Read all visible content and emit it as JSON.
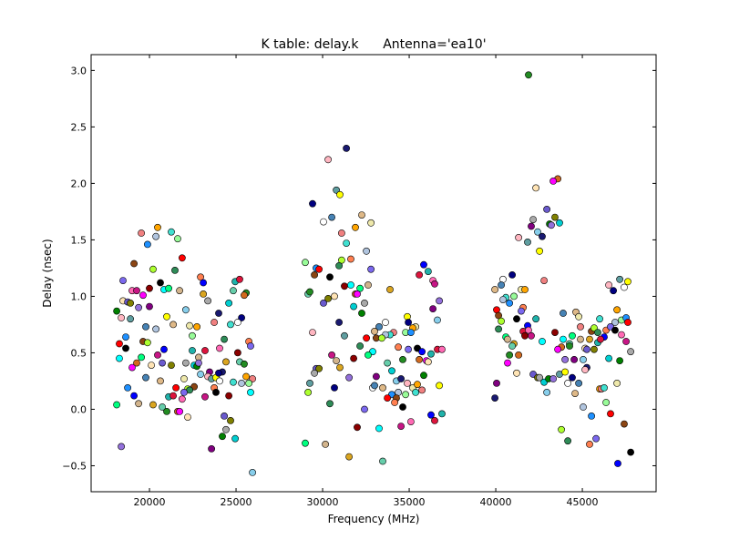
{
  "chart_data": {
    "type": "scatter",
    "title": "K table: delay.k      Antenna='ea10'",
    "xlabel": "Frequency (MHz)",
    "ylabel": "Delay (nsec)",
    "xlim": [
      16630,
      49260
    ],
    "ylim": [
      -0.73,
      3.14
    ],
    "xticks": [
      20000,
      25000,
      30000,
      35000,
      40000,
      45000
    ],
    "yticks": [
      -0.5,
      0.0,
      0.5,
      1.0,
      1.5,
      2.0,
      2.5,
      3.0
    ],
    "xtick_labels": [
      "20000",
      "25000",
      "30000",
      "35000",
      "40000",
      "45000"
    ],
    "ytick_labels": [
      "−0.5",
      "0.0",
      "0.5",
      "1.0",
      "1.5",
      "2.0",
      "2.5",
      "3.0"
    ],
    "grid": false,
    "marker": "circle",
    "colors": [
      "#ff0000",
      "#00ffff",
      "#008000",
      "#ffa500",
      "#0000ff",
      "#ff00ff",
      "#ffff00",
      "#8b4513",
      "#00ff7f",
      "#9370db",
      "#f08080",
      "#20b2aa",
      "#ffe4b5",
      "#000080",
      "#adff2f",
      "#d2b48c",
      "#800080",
      "#40e0d0",
      "#dc143c",
      "#6a5acd",
      "#ffffff",
      "#2e8b57",
      "#daa520",
      "#87ceeb",
      "#b0c4de",
      "#ff69b4",
      "#808000",
      "#4682b4",
      "#ff7f50",
      "#66cdaa",
      "#191970",
      "#98fb98",
      "#c71585",
      "#a9a9a9",
      "#deb887",
      "#7b68ee",
      "#228b22",
      "#ffb6c1",
      "#1e90ff",
      "#8b0000",
      "#00ced1",
      "#eee8aa",
      "#000000",
      "#d2691e",
      "#5f9ea0"
    ],
    "points": [
      [
        20470,
        1.61
      ],
      [
        19530,
        1.56
      ],
      [
        21260,
        1.57
      ],
      [
        20370,
        1.53
      ],
      [
        21630,
        1.51
      ],
      [
        19890,
        1.46
      ],
      [
        21890,
        1.34
      ],
      [
        19110,
        1.29
      ],
      [
        20210,
        1.24
      ],
      [
        21470,
        1.23
      ],
      [
        22950,
        1.17
      ],
      [
        18470,
        1.14
      ],
      [
        20630,
        1.12
      ],
      [
        23110,
        1.12
      ],
      [
        24950,
        1.13
      ],
      [
        25210,
        1.15
      ],
      [
        19000,
        1.05
      ],
      [
        19260,
        1.05
      ],
      [
        20000,
        1.07
      ],
      [
        20840,
        1.06
      ],
      [
        21110,
        1.07
      ],
      [
        21740,
        1.05
      ],
      [
        23110,
        1.02
      ],
      [
        24840,
        1.05
      ],
      [
        25580,
        1.03
      ],
      [
        25470,
        1.01
      ],
      [
        19630,
        1.01
      ],
      [
        18470,
        0.96
      ],
      [
        18740,
        0.95
      ],
      [
        18900,
        0.94
      ],
      [
        23370,
        0.96
      ],
      [
        24580,
        0.94
      ],
      [
        18110,
        0.87
      ],
      [
        19370,
        0.9
      ],
      [
        20000,
        0.91
      ],
      [
        22100,
        0.88
      ],
      [
        24000,
        0.85
      ],
      [
        18370,
        0.81
      ],
      [
        18900,
        0.8
      ],
      [
        21000,
        0.82
      ],
      [
        25320,
        0.81
      ],
      [
        25100,
        0.77
      ],
      [
        19790,
        0.73
      ],
      [
        21370,
        0.75
      ],
      [
        22320,
        0.74
      ],
      [
        22740,
        0.73
      ],
      [
        23740,
        0.77
      ],
      [
        24680,
        0.75
      ],
      [
        20370,
        0.71
      ],
      [
        22470,
        0.65
      ],
      [
        18630,
        0.64
      ],
      [
        18260,
        0.58
      ],
      [
        19630,
        0.6
      ],
      [
        19890,
        0.59
      ],
      [
        24320,
        0.62
      ],
      [
        25740,
        0.6
      ],
      [
        25840,
        0.56
      ],
      [
        18630,
        0.54
      ],
      [
        20840,
        0.53
      ],
      [
        22470,
        0.52
      ],
      [
        23210,
        0.52
      ],
      [
        24050,
        0.54
      ],
      [
        20470,
        0.48
      ],
      [
        25100,
        0.5
      ],
      [
        18260,
        0.45
      ],
      [
        19530,
        0.46
      ],
      [
        22840,
        0.46
      ],
      [
        24420,
        0.42
      ],
      [
        25210,
        0.42
      ],
      [
        25470,
        0.4
      ],
      [
        19260,
        0.41
      ],
      [
        19000,
        0.37
      ],
      [
        20110,
        0.39
      ],
      [
        20740,
        0.41
      ],
      [
        21260,
        0.39
      ],
      [
        22100,
        0.41
      ],
      [
        22580,
        0.39
      ],
      [
        22740,
        0.38
      ],
      [
        22840,
        0.41
      ],
      [
        23470,
        0.33
      ],
      [
        22950,
        0.31
      ],
      [
        24210,
        0.33
      ],
      [
        23370,
        0.29
      ],
      [
        23580,
        0.27
      ],
      [
        23840,
        0.28
      ],
      [
        24000,
        0.32
      ],
      [
        24050,
        0.25
      ],
      [
        19790,
        0.28
      ],
      [
        20630,
        0.25
      ],
      [
        22000,
        0.27
      ],
      [
        25580,
        0.29
      ],
      [
        25950,
        0.27
      ],
      [
        24840,
        0.24
      ],
      [
        25320,
        0.23
      ],
      [
        25740,
        0.23
      ],
      [
        18740,
        0.19
      ],
      [
        21530,
        0.19
      ],
      [
        22580,
        0.2
      ],
      [
        22210,
        0.18
      ],
      [
        22320,
        0.17
      ],
      [
        23740,
        0.19
      ],
      [
        22000,
        0.15
      ],
      [
        23840,
        0.15
      ],
      [
        19110,
        0.12
      ],
      [
        21110,
        0.11
      ],
      [
        21370,
        0.12
      ],
      [
        21890,
        0.09
      ],
      [
        23210,
        0.11
      ],
      [
        24580,
        0.12
      ],
      [
        25840,
        0.15
      ],
      [
        18110,
        0.04
      ],
      [
        19370,
        0.05
      ],
      [
        20210,
        0.04
      ],
      [
        20740,
        0.02
      ],
      [
        21000,
        -0.02
      ],
      [
        21630,
        -0.02
      ],
      [
        21740,
        -0.02
      ],
      [
        22210,
        -0.07
      ],
      [
        24320,
        -0.06
      ],
      [
        24680,
        -0.1
      ],
      [
        24420,
        -0.18
      ],
      [
        24950,
        -0.26
      ],
      [
        24210,
        -0.24
      ],
      [
        18370,
        -0.33
      ],
      [
        23580,
        -0.35
      ],
      [
        25950,
        -0.56
      ],
      [
        31370,
        2.31
      ],
      [
        30320,
        2.21
      ],
      [
        30790,
        1.94
      ],
      [
        31000,
        1.9
      ],
      [
        29420,
        1.82
      ],
      [
        30050,
        1.66
      ],
      [
        30530,
        1.7
      ],
      [
        32260,
        1.72
      ],
      [
        32790,
        1.65
      ],
      [
        31890,
        1.61
      ],
      [
        31100,
        1.56
      ],
      [
        31370,
        1.47
      ],
      [
        32530,
        1.4
      ],
      [
        29000,
        1.3
      ],
      [
        29630,
        1.25
      ],
      [
        29790,
        1.24
      ],
      [
        29530,
        1.19
      ],
      [
        31100,
        1.32
      ],
      [
        30950,
        1.27
      ],
      [
        31630,
        1.33
      ],
      [
        32790,
        1.24
      ],
      [
        30420,
        1.17
      ],
      [
        35840,
        1.28
      ],
      [
        36100,
        1.22
      ],
      [
        35580,
        1.19
      ],
      [
        36370,
        1.14
      ],
      [
        36470,
        1.11
      ],
      [
        31260,
        1.09
      ],
      [
        31630,
        1.1
      ],
      [
        32160,
        1.07
      ],
      [
        32630,
        1.1
      ],
      [
        33890,
        1.06
      ],
      [
        29160,
        1.02
      ],
      [
        29260,
        1.04
      ],
      [
        31890,
        1.02
      ],
      [
        32000,
        1.02
      ],
      [
        30680,
        1.0
      ],
      [
        30050,
        0.94
      ],
      [
        30320,
        0.98
      ],
      [
        32420,
        0.94
      ],
      [
        31790,
        0.91
      ],
      [
        32260,
        0.85
      ],
      [
        36740,
        0.96
      ],
      [
        36370,
        0.89
      ],
      [
        36630,
        0.79
      ],
      [
        30950,
        0.77
      ],
      [
        29420,
        0.68
      ],
      [
        31260,
        0.65
      ],
      [
        34890,
        0.82
      ],
      [
        34950,
        0.77
      ],
      [
        33630,
        0.77
      ],
      [
        33260,
        0.73
      ],
      [
        33000,
        0.69
      ],
      [
        35370,
        0.73
      ],
      [
        35210,
        0.72
      ],
      [
        34100,
        0.68
      ],
      [
        33890,
        0.66
      ],
      [
        33630,
        0.66
      ],
      [
        34790,
        0.68
      ],
      [
        35100,
        0.68
      ],
      [
        32530,
        0.63
      ],
      [
        33100,
        0.63
      ],
      [
        33420,
        0.63
      ],
      [
        32160,
        0.56
      ],
      [
        34370,
        0.55
      ],
      [
        34950,
        0.53
      ],
      [
        35470,
        0.54
      ],
      [
        35740,
        0.51
      ],
      [
        36260,
        0.49
      ],
      [
        36630,
        0.53
      ],
      [
        36890,
        0.53
      ],
      [
        30530,
        0.48
      ],
      [
        31790,
        0.45
      ],
      [
        32890,
        0.51
      ],
      [
        32630,
        0.48
      ],
      [
        30790,
        0.43
      ],
      [
        31000,
        0.37
      ],
      [
        33740,
        0.41
      ],
      [
        34630,
        0.44
      ],
      [
        35580,
        0.44
      ],
      [
        36000,
        0.43
      ],
      [
        36100,
        0.42
      ],
      [
        29630,
        0.36
      ],
      [
        29790,
        0.36
      ],
      [
        29530,
        0.32
      ],
      [
        34000,
        0.34
      ],
      [
        35840,
        0.3
      ],
      [
        31530,
        0.28
      ],
      [
        33100,
        0.29
      ],
      [
        34260,
        0.25
      ],
      [
        34530,
        0.27
      ],
      [
        34890,
        0.23
      ],
      [
        29260,
        0.23
      ],
      [
        36740,
        0.21
      ],
      [
        30680,
        0.19
      ],
      [
        32890,
        0.19
      ],
      [
        33000,
        0.21
      ],
      [
        33470,
        0.19
      ],
      [
        35210,
        0.19
      ],
      [
        35470,
        0.22
      ],
      [
        35740,
        0.17
      ],
      [
        35370,
        0.15
      ],
      [
        34370,
        0.15
      ],
      [
        34790,
        0.13
      ],
      [
        34000,
        0.13
      ],
      [
        33740,
        0.1
      ],
      [
        34260,
        0.1
      ],
      [
        29160,
        0.15
      ],
      [
        30420,
        0.05
      ],
      [
        34160,
        0.06
      ],
      [
        32420,
        0.0
      ],
      [
        34630,
        0.02
      ],
      [
        36260,
        -0.05
      ],
      [
        36890,
        -0.04
      ],
      [
        36470,
        -0.1
      ],
      [
        35100,
        -0.11
      ],
      [
        34530,
        -0.15
      ],
      [
        32000,
        -0.16
      ],
      [
        33260,
        -0.17
      ],
      [
        29000,
        -0.3
      ],
      [
        30160,
        -0.31
      ],
      [
        31530,
        -0.42
      ],
      [
        33470,
        -0.46
      ],
      [
        41890,
        2.96
      ],
      [
        43580,
        2.04
      ],
      [
        43320,
        2.02
      ],
      [
        42320,
        1.96
      ],
      [
        42950,
        1.77
      ],
      [
        43420,
        1.7
      ],
      [
        42160,
        1.68
      ],
      [
        43680,
        1.65
      ],
      [
        43110,
        1.64
      ],
      [
        43210,
        1.63
      ],
      [
        42050,
        1.62
      ],
      [
        42420,
        1.57
      ],
      [
        42680,
        1.53
      ],
      [
        41320,
        1.52
      ],
      [
        41840,
        1.48
      ],
      [
        42530,
        1.4
      ],
      [
        40950,
        1.19
      ],
      [
        40420,
        1.15
      ],
      [
        40320,
        1.1
      ],
      [
        39950,
        1.06
      ],
      [
        41470,
        1.06
      ],
      [
        41680,
        1.06
      ],
      [
        42790,
        1.14
      ],
      [
        40580,
        0.99
      ],
      [
        40420,
        0.97
      ],
      [
        41050,
        1.0
      ],
      [
        40790,
        0.94
      ],
      [
        40050,
        0.88
      ],
      [
        40160,
        0.83
      ],
      [
        40320,
        0.78
      ],
      [
        40160,
        0.71
      ],
      [
        41580,
        0.9
      ],
      [
        41470,
        0.87
      ],
      [
        41210,
        0.8
      ],
      [
        41840,
        0.74
      ],
      [
        42320,
        0.8
      ],
      [
        41580,
        0.69
      ],
      [
        41890,
        0.7
      ],
      [
        42050,
        0.65
      ],
      [
        41680,
        0.65
      ],
      [
        42680,
        0.6
      ],
      [
        40580,
        0.64
      ],
      [
        40680,
        0.62
      ],
      [
        41050,
        0.58
      ],
      [
        40950,
        0.56
      ],
      [
        40790,
        0.48
      ],
      [
        41320,
        0.48
      ],
      [
        40680,
        0.41
      ],
      [
        41210,
        0.32
      ],
      [
        42160,
        0.31
      ],
      [
        42420,
        0.28
      ],
      [
        42530,
        0.28
      ],
      [
        42790,
        0.24
      ],
      [
        43050,
        0.27
      ],
      [
        43320,
        0.27
      ],
      [
        40050,
        0.23
      ],
      [
        42950,
        0.15
      ],
      [
        39950,
        0.1
      ],
      [
        46530,
        1.1
      ],
      [
        47160,
        1.15
      ],
      [
        47630,
        1.13
      ],
      [
        46790,
        1.05
      ],
      [
        47420,
        1.08
      ],
      [
        43890,
        0.85
      ],
      [
        44630,
        0.86
      ],
      [
        44790,
        0.82
      ],
      [
        47000,
        0.88
      ],
      [
        44890,
        0.73
      ],
      [
        46000,
        0.8
      ],
      [
        46890,
        0.77
      ],
      [
        47260,
        0.79
      ],
      [
        47530,
        0.81
      ],
      [
        47630,
        0.77
      ],
      [
        45530,
        0.69
      ],
      [
        45680,
        0.72
      ],
      [
        45890,
        0.68
      ],
      [
        46370,
        0.7
      ],
      [
        46630,
        0.73
      ],
      [
        46890,
        0.7
      ],
      [
        46260,
        0.64
      ],
      [
        45890,
        0.59
      ],
      [
        46050,
        0.62
      ],
      [
        47260,
        0.66
      ],
      [
        47530,
        0.6
      ],
      [
        43420,
        0.68
      ],
      [
        43890,
        0.62
      ],
      [
        44420,
        0.65
      ],
      [
        44890,
        0.62
      ],
      [
        45420,
        0.62
      ],
      [
        44260,
        0.58
      ],
      [
        44260,
        0.56
      ],
      [
        43790,
        0.55
      ],
      [
        43580,
        0.53
      ],
      [
        45160,
        0.54
      ],
      [
        45260,
        0.53
      ],
      [
        45680,
        0.53
      ],
      [
        47790,
        0.51
      ],
      [
        46530,
        0.45
      ],
      [
        47160,
        0.43
      ],
      [
        44000,
        0.44
      ],
      [
        44530,
        0.44
      ],
      [
        45050,
        0.44
      ],
      [
        45260,
        0.37
      ],
      [
        45160,
        0.35
      ],
      [
        43680,
        0.31
      ],
      [
        44000,
        0.33
      ],
      [
        44420,
        0.28
      ],
      [
        44160,
        0.23
      ],
      [
        44790,
        0.23
      ],
      [
        44580,
        0.14
      ],
      [
        47000,
        0.23
      ],
      [
        46000,
        0.18
      ],
      [
        46100,
        0.18
      ],
      [
        46260,
        0.19
      ],
      [
        45050,
        0.02
      ],
      [
        46370,
        0.06
      ],
      [
        45530,
        -0.06
      ],
      [
        46630,
        -0.04
      ],
      [
        47420,
        -0.13
      ],
      [
        43790,
        -0.18
      ],
      [
        44160,
        -0.28
      ],
      [
        45420,
        -0.31
      ],
      [
        45790,
        -0.26
      ],
      [
        47790,
        -0.38
      ],
      [
        47050,
        -0.48
      ]
    ]
  }
}
